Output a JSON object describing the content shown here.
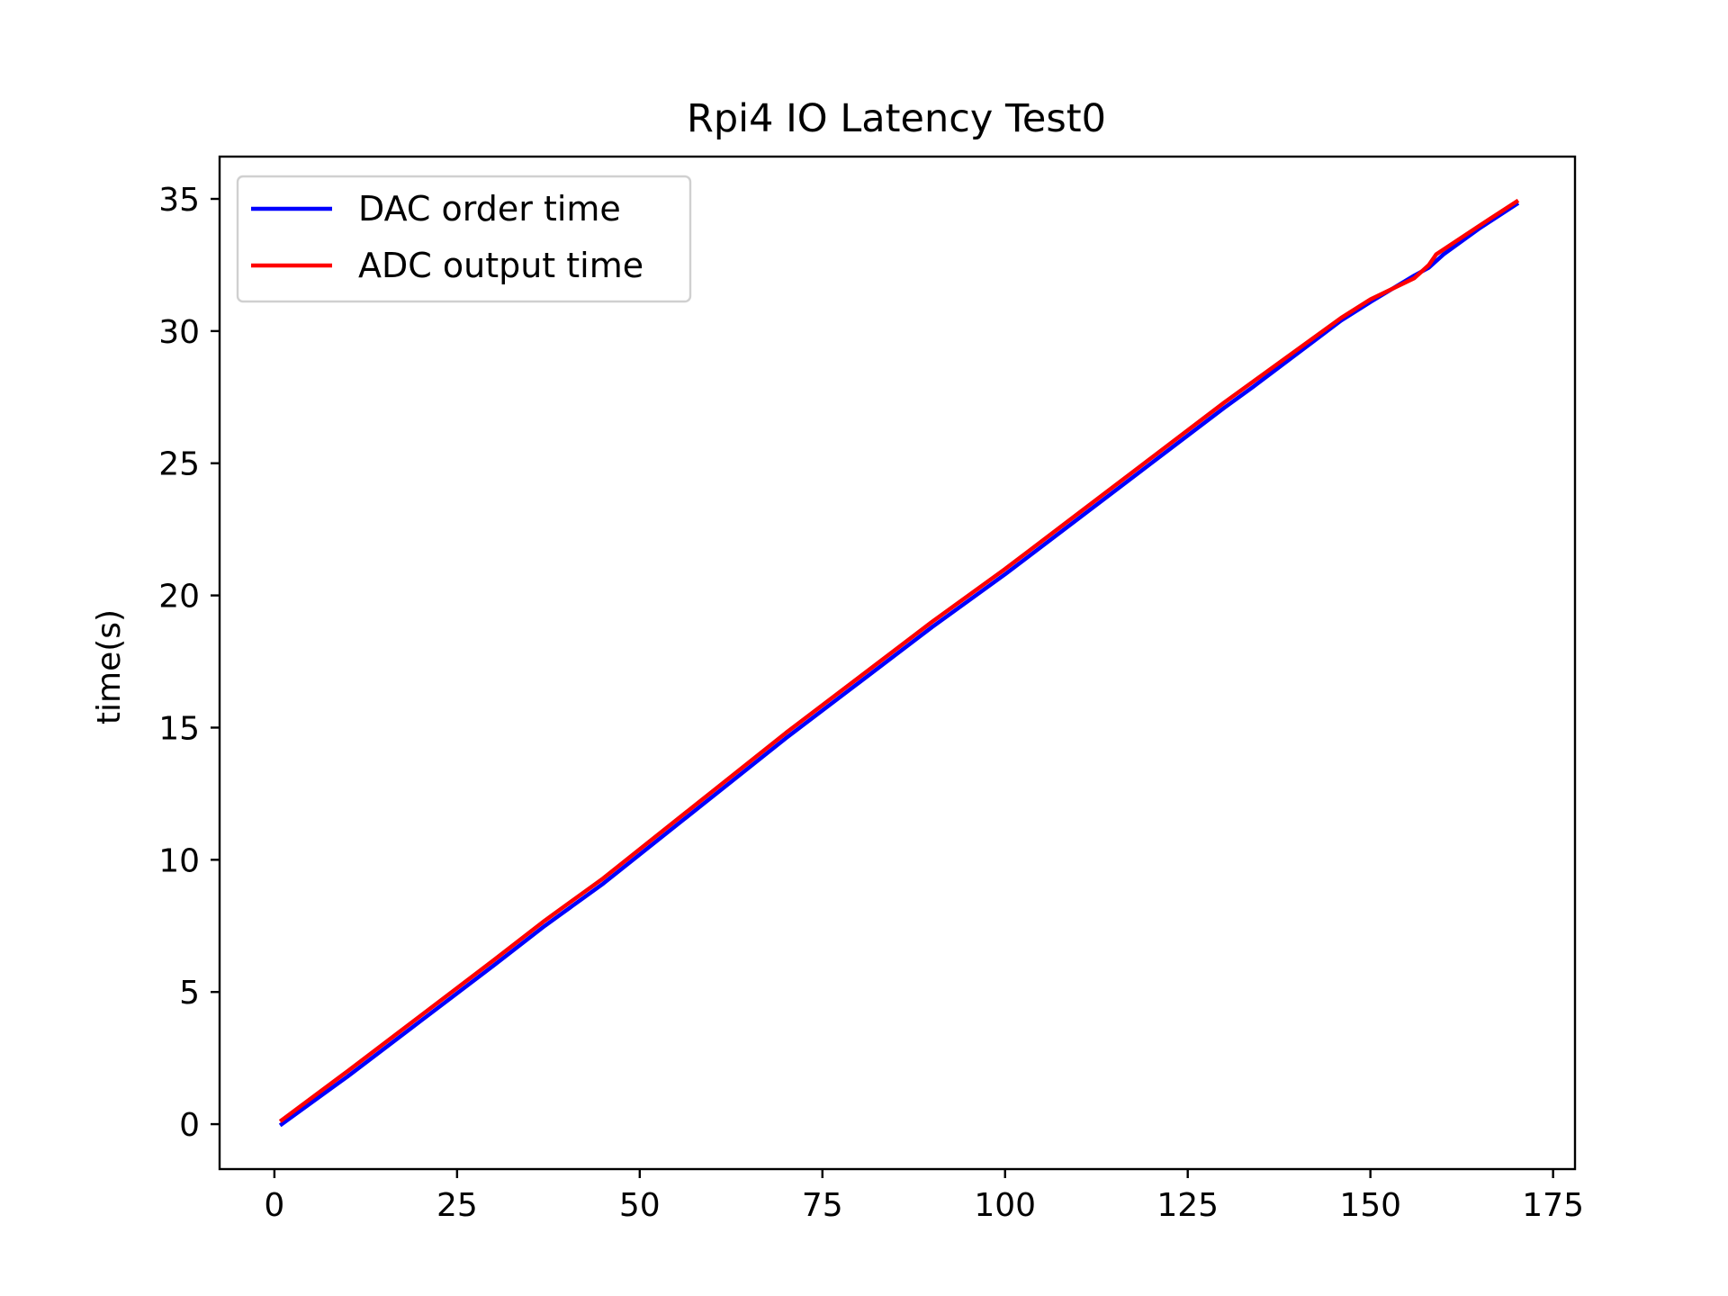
{
  "chart_data": {
    "type": "line",
    "title": "Rpi4 IO Latency Test0",
    "xlabel": "",
    "ylabel": "time(s)",
    "xlim": [
      -7.5,
      178
    ],
    "ylim": [
      -1.7,
      36.6
    ],
    "xticks": [
      0,
      25,
      50,
      75,
      100,
      125,
      150,
      175
    ],
    "yticks": [
      0,
      5,
      10,
      15,
      20,
      25,
      30,
      35
    ],
    "grid": false,
    "legend_position": "upper left",
    "series": [
      {
        "name": "DAC order time",
        "color": "#0000ff",
        "x": [
          1,
          10,
          20,
          30,
          37,
          45,
          60,
          70,
          80,
          90,
          100,
          110,
          120,
          130,
          134,
          146,
          150,
          156,
          158,
          160,
          165,
          170
        ],
        "y": [
          0.0,
          1.8,
          3.9,
          6.0,
          7.5,
          9.1,
          12.4,
          14.6,
          16.7,
          18.8,
          20.8,
          22.9,
          25.0,
          27.1,
          27.9,
          30.4,
          31.1,
          32.1,
          32.4,
          32.9,
          33.9,
          34.8
        ]
      },
      {
        "name": "ADC output time",
        "color": "#ff0000",
        "x": [
          1,
          10,
          20,
          30,
          37,
          45,
          60,
          70,
          80,
          90,
          100,
          110,
          120,
          130,
          134,
          146,
          150,
          156,
          158,
          159,
          165,
          170
        ],
        "y": [
          0.15,
          2.0,
          4.1,
          6.2,
          7.7,
          9.3,
          12.6,
          14.8,
          16.9,
          19.0,
          21.0,
          23.1,
          25.2,
          27.3,
          28.1,
          30.5,
          31.2,
          32.0,
          32.5,
          32.9,
          34.0,
          34.9
        ]
      }
    ]
  }
}
